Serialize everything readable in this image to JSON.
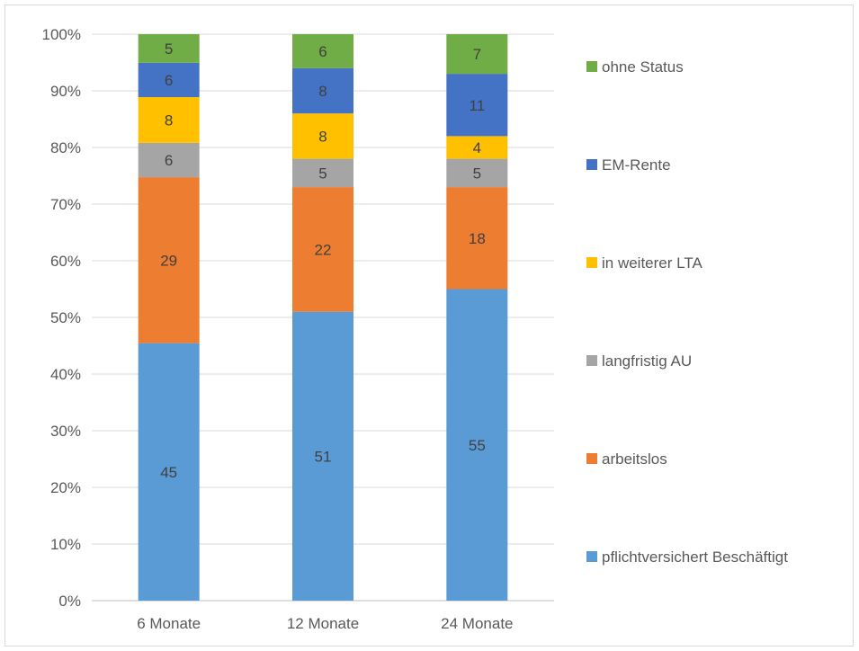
{
  "chart_data": {
    "type": "bar",
    "stacked": true,
    "percent_stacked": true,
    "categories": [
      "6 Monate",
      "12 Monate",
      "24 Monate"
    ],
    "series": [
      {
        "name": "pflichtversichert Beschäftigt",
        "values": [
          45,
          51,
          55
        ],
        "color": "#5b9bd5"
      },
      {
        "name": "arbeitslos",
        "values": [
          29,
          22,
          18
        ],
        "color": "#ed7d31"
      },
      {
        "name": "langfristig AU",
        "values": [
          6,
          5,
          5
        ],
        "color": "#a5a5a5"
      },
      {
        "name": "in weiterer LTA",
        "values": [
          8,
          8,
          4
        ],
        "color": "#ffc000"
      },
      {
        "name": "EM-Rente",
        "values": [
          6,
          8,
          11
        ],
        "color": "#4472c4"
      },
      {
        "name": "ohne Status",
        "values": [
          5,
          6,
          7
        ],
        "color": "#70ad47"
      }
    ],
    "y_ticks": [
      "0%",
      "10%",
      "20%",
      "30%",
      "40%",
      "50%",
      "60%",
      "70%",
      "80%",
      "90%",
      "100%"
    ],
    "ylim": [
      0,
      100
    ],
    "grid": true,
    "legend_position": "right"
  }
}
